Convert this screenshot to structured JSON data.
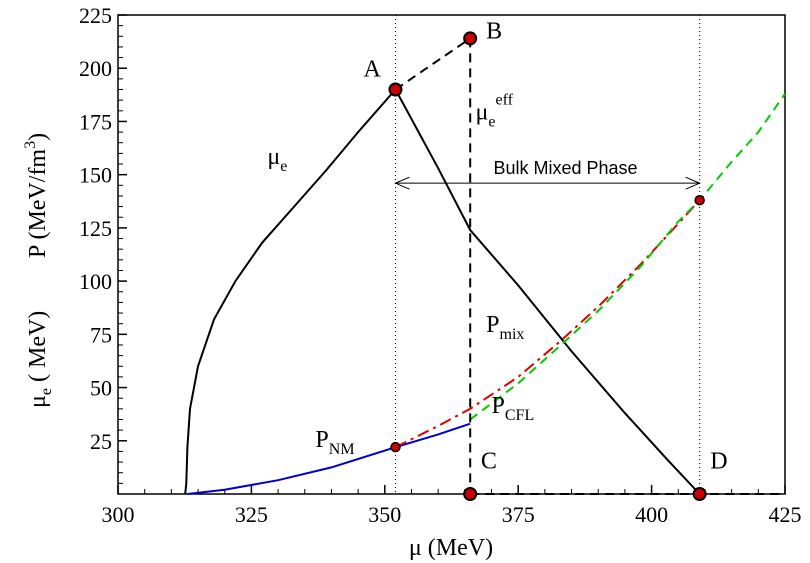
{
  "chart_data": {
    "type": "line",
    "xlabel": "μ (MeV)",
    "ylabel_top": "P (MeV/fm",
    "ylabel_top_sup": "3",
    "ylabel_top_close": ")",
    "ylabel_bottom": "μ",
    "ylabel_bottom_sub": "e",
    "ylabel_bottom_rest": "( MeV)",
    "xlim": [
      300,
      425
    ],
    "ylim": [
      0,
      225
    ],
    "x_ticks": [
      300,
      325,
      350,
      375,
      400,
      425
    ],
    "y_ticks": [
      25,
      50,
      75,
      100,
      125,
      150,
      175,
      200,
      225
    ],
    "grid": false,
    "colors": {
      "mu_e": "#000000",
      "P_NM": "#0000cc",
      "P_mix": "#e00000",
      "P_CFL": "#00cc00",
      "marker_fill": "#cc0000"
    },
    "series": [
      {
        "name": "μe",
        "style": "solid",
        "color": "#000000",
        "points": [
          [
            312.6,
            0
          ],
          [
            312.8,
            5
          ],
          [
            313.0,
            22
          ],
          [
            313.5,
            40
          ],
          [
            315,
            60
          ],
          [
            318,
            82
          ],
          [
            322,
            100
          ],
          [
            327,
            118
          ],
          [
            333,
            135
          ],
          [
            339,
            152
          ],
          [
            345,
            170
          ],
          [
            352,
            190
          ]
        ]
      },
      {
        "name": "μe (descending)",
        "style": "solid",
        "color": "#000000",
        "points": [
          [
            352,
            190
          ],
          [
            360,
            153
          ],
          [
            366,
            124
          ],
          [
            375,
            98
          ],
          [
            385,
            67
          ],
          [
            395,
            38
          ],
          [
            403,
            16
          ],
          [
            409,
            0
          ]
        ]
      },
      {
        "name": "P_NM",
        "style": "solid",
        "color": "#0000cc",
        "points": [
          [
            313,
            0
          ],
          [
            320,
            2
          ],
          [
            330,
            6.5
          ],
          [
            340,
            12.5
          ],
          [
            352,
            22
          ],
          [
            360,
            28
          ],
          [
            366,
            33
          ]
        ]
      },
      {
        "name": "P_mix",
        "style": "dash-dot",
        "color": "#e00000",
        "points": [
          [
            352,
            22
          ],
          [
            360,
            32
          ],
          [
            366,
            40
          ],
          [
            375,
            55
          ],
          [
            383,
            72
          ],
          [
            390,
            88
          ],
          [
            398,
            108
          ],
          [
            405,
            127
          ],
          [
            409,
            138
          ]
        ]
      },
      {
        "name": "P_CFL",
        "style": "dashed",
        "color": "#00cc00",
        "points": [
          [
            366,
            35
          ],
          [
            375,
            52
          ],
          [
            383,
            70
          ],
          [
            390,
            86
          ],
          [
            398,
            107
          ],
          [
            405,
            128
          ],
          [
            409,
            138
          ],
          [
            415,
            156
          ],
          [
            420,
            170
          ],
          [
            425,
            188
          ]
        ]
      },
      {
        "name": "A to B",
        "style": "dashed",
        "color": "#000000",
        "points": [
          [
            352,
            190
          ],
          [
            366,
            214
          ]
        ]
      },
      {
        "name": "B to C",
        "style": "dashed",
        "color": "#000000",
        "points": [
          [
            366,
            214
          ],
          [
            366,
            0
          ]
        ]
      },
      {
        "name": "C to D",
        "style": "dashed",
        "color": "#000000",
        "points": [
          [
            366,
            0
          ],
          [
            409,
            0
          ],
          [
            425,
            0
          ]
        ]
      }
    ],
    "markers_large": [
      [
        352,
        190
      ],
      [
        366,
        214
      ],
      [
        366,
        0
      ],
      [
        409,
        0
      ]
    ],
    "markers_small": [
      [
        352,
        22
      ],
      [
        409,
        138
      ]
    ],
    "vlines_dotted": [
      352,
      409
    ],
    "bulk_arrow": {
      "x1": 352,
      "x2": 409,
      "y": 146,
      "label": "Bulk Mixed Phase"
    },
    "annotations": {
      "A": "A",
      "B": "B",
      "C": "C",
      "D": "D",
      "mu_e_label": "μ",
      "mu_e_sub": "e",
      "mu_eff_label": "μ",
      "mu_eff_sub": "e",
      "mu_eff_sup": "eff",
      "pmix_label": "P",
      "pmix_sub": "mix",
      "pcfl_label": "P",
      "pcfl_sub": "CFL",
      "pnm_label": "P",
      "pnm_sub": "NM"
    }
  }
}
